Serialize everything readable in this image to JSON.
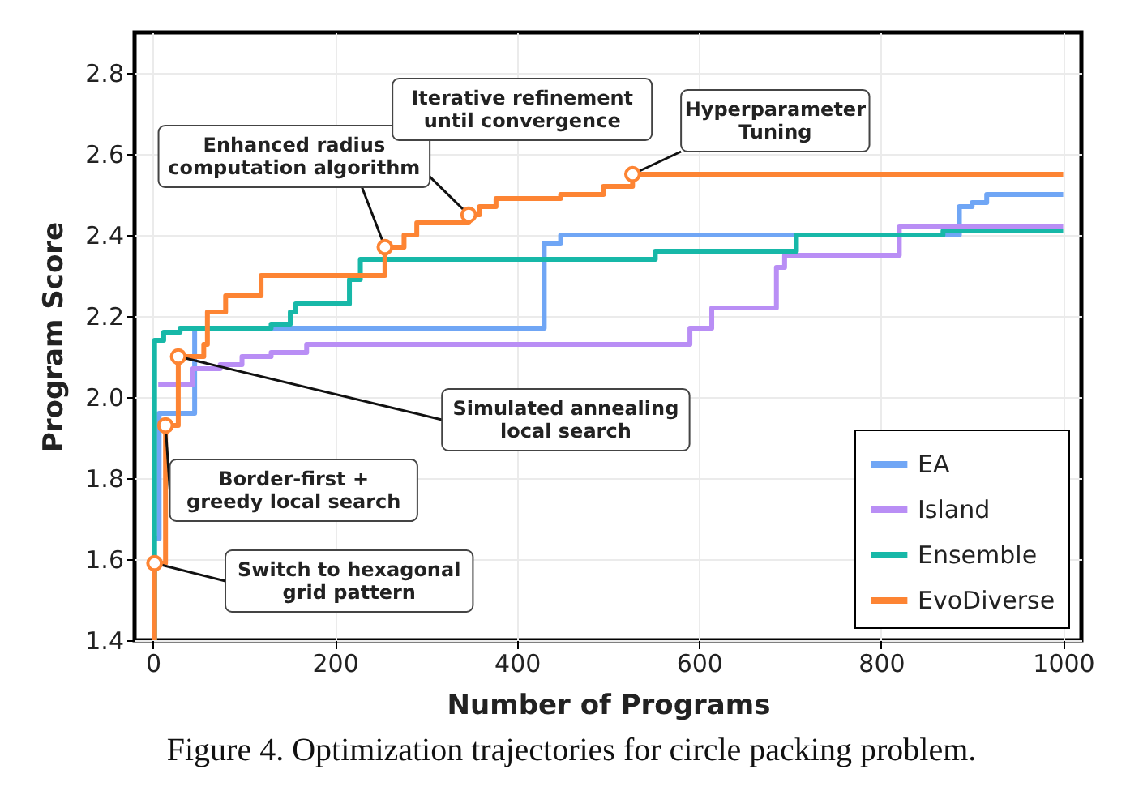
{
  "chart_data": {
    "type": "step",
    "xlabel": "Number of Programs",
    "ylabel": "Program Score",
    "xlim": [
      -20,
      1020
    ],
    "ylim": [
      1.4,
      2.9
    ],
    "xticks": [
      0,
      200,
      400,
      600,
      800,
      1000
    ],
    "yticks": [
      1.4,
      1.6,
      1.8,
      {
        "value": 2,
        "label": "2.0"
      },
      2.2,
      2.4,
      2.6,
      2.8
    ],
    "grid": true,
    "legend": "bottom right",
    "series": [
      {
        "name": "EA",
        "color": "#70a6f5",
        "x": [
          3,
          7,
          46,
          430,
          448,
          886,
          900,
          916,
          1000
        ],
        "values": [
          1.65,
          1.96,
          2.17,
          2.38,
          2.4,
          2.47,
          2.48,
          2.5,
          2.5
        ]
      },
      {
        "name": "Island",
        "color": "#b98ef5",
        "x": [
          6,
          44,
          74,
          98,
          130,
          169,
          590,
          614,
          685,
          694,
          820,
          1000
        ],
        "values": [
          2.03,
          2.07,
          2.08,
          2.1,
          2.11,
          2.13,
          2.17,
          2.22,
          2.32,
          2.35,
          2.42,
          2.42
        ]
      },
      {
        "name": "Ensemble",
        "color": "#17b8a8",
        "x": [
          1,
          2,
          12,
          30,
          130,
          151,
          157,
          216,
          228,
          552,
          707,
          868,
          1000
        ],
        "values": [
          1.4,
          2.14,
          2.16,
          2.17,
          2.18,
          2.21,
          2.23,
          2.29,
          2.34,
          2.36,
          2.4,
          2.41,
          2.41
        ]
      },
      {
        "name": "EvoDiverse",
        "color": "#fd8433",
        "x": [
          2,
          2,
          14,
          28,
          56,
          60,
          80,
          119,
          255,
          276,
          290,
          347,
          359,
          377,
          448,
          495,
          527,
          1000
        ],
        "values": [
          1.4,
          1.59,
          1.93,
          2.1,
          2.13,
          2.21,
          2.25,
          2.3,
          2.37,
          2.4,
          2.43,
          2.45,
          2.47,
          2.49,
          2.5,
          2.52,
          2.55,
          2.55
        ]
      }
    ],
    "annotations": [
      {
        "text": "Switch to hexagonal\ngrid pattern",
        "x": 2,
        "y": 1.59
      },
      {
        "text": "Border-first +\ngreedy local search",
        "x": 14,
        "y": 1.93
      },
      {
        "text": "Simulated annealing\nlocal search",
        "x": 28,
        "y": 2.1
      },
      {
        "text": "Enhanced radius\ncomputation algorithm",
        "x": 255,
        "y": 2.37
      },
      {
        "text": "Iterative refinement\nuntil convergence",
        "x": 347,
        "y": 2.45
      },
      {
        "text": "Hyperparameter\nTuning",
        "x": 527,
        "y": 2.55
      },
      "Figure 4. Optimization trajectories for circle packing problem."
    ]
  }
}
